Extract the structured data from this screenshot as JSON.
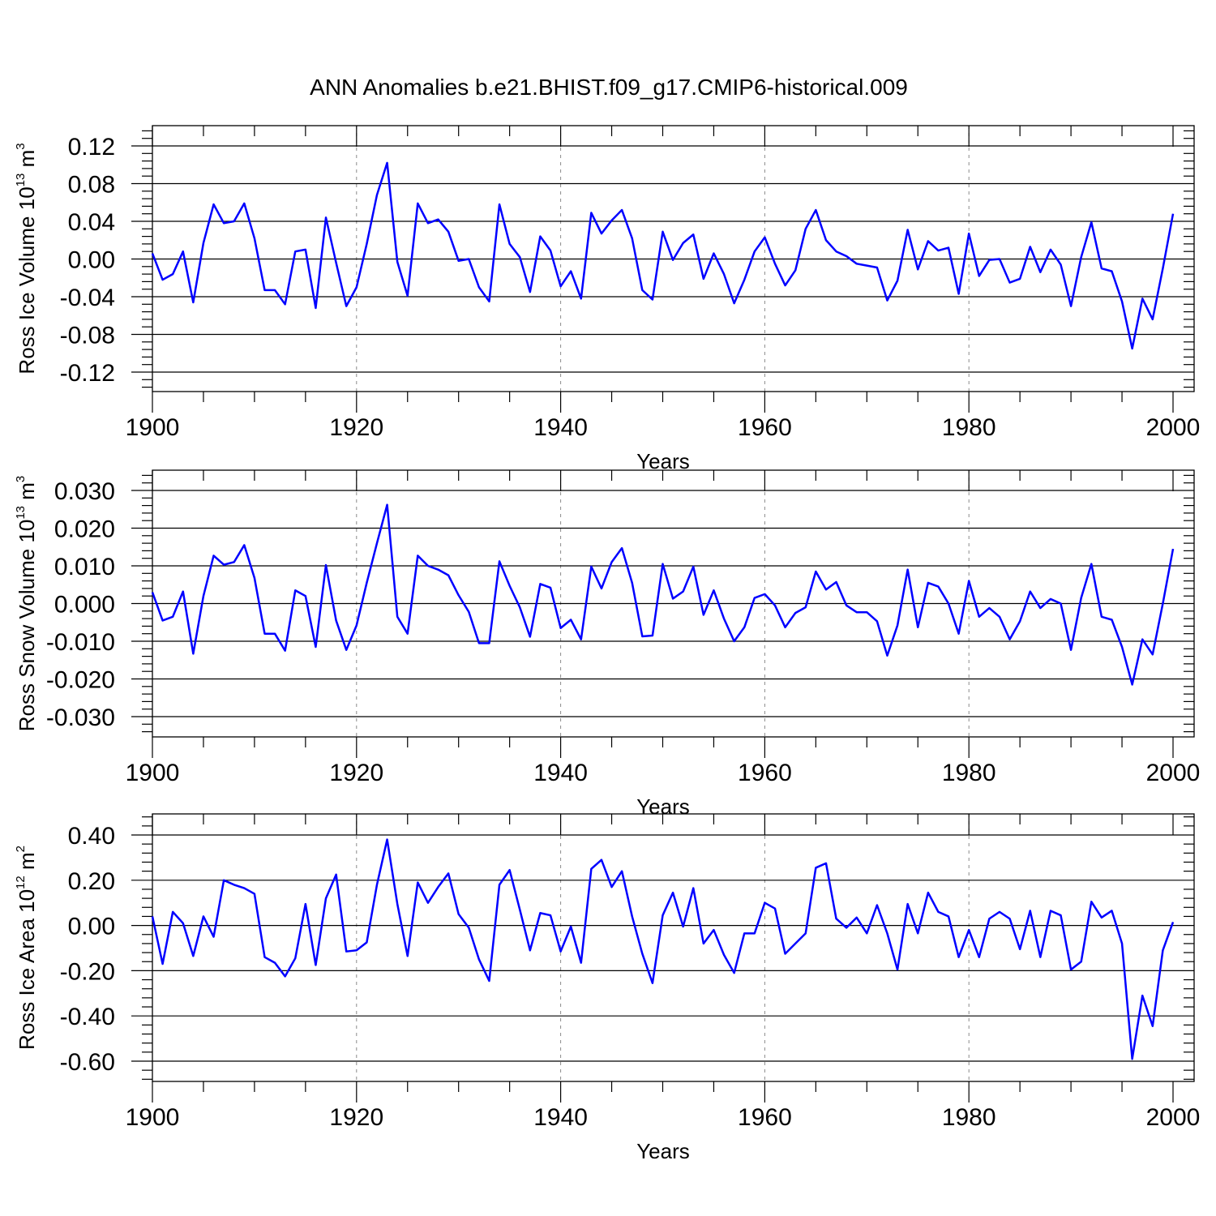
{
  "title": "ANN Anomalies b.e21.BHIST.f09_g17.CMIP6-historical.009",
  "line_color": "#0000ff",
  "chart_data": [
    {
      "type": "line",
      "xlabel": "Years",
      "ylabel": {
        "text": "Ross Ice Volume 10",
        "sup": "13",
        "unit": " m",
        "unit_sup": "3"
      },
      "xlim": [
        1900,
        2000
      ],
      "ylim": [
        -0.12,
        0.12
      ],
      "xticks": [
        1900,
        1920,
        1940,
        1960,
        1980,
        2000
      ],
      "xtick_labels": [
        "1900",
        "1920",
        "1940",
        "1960",
        "1980",
        "2000"
      ],
      "yticks": [
        -0.12,
        -0.08,
        -0.04,
        0.0,
        0.04,
        0.08,
        0.12
      ],
      "ytick_labels": [
        "-0.12",
        "-0.08",
        "-0.04",
        "0.00",
        "0.04",
        "0.08",
        "0.12"
      ],
      "grid": "x-dashed",
      "x_start": 1900,
      "values": [
        0.006,
        -0.022,
        -0.016,
        0.008,
        -0.046,
        0.017,
        0.058,
        0.038,
        0.04,
        0.059,
        0.022,
        -0.033,
        -0.033,
        -0.048,
        0.008,
        0.01,
        -0.052,
        0.044,
        -0.004,
        -0.05,
        -0.03,
        0.016,
        0.068,
        0.102,
        -0.003,
        -0.039,
        0.059,
        0.038,
        0.042,
        0.029,
        -0.002,
        0.0,
        -0.03,
        -0.045,
        0.058,
        0.016,
        0.002,
        -0.035,
        0.024,
        0.009,
        -0.029,
        -0.013,
        -0.042,
        0.049,
        0.027,
        0.041,
        0.052,
        0.022,
        -0.033,
        -0.043,
        0.029,
        -0.001,
        0.017,
        0.026,
        -0.021,
        0.006,
        -0.016,
        -0.047,
        -0.022,
        0.008,
        0.023,
        -0.005,
        -0.028,
        -0.012,
        0.032,
        0.052,
        0.02,
        0.008,
        0.003,
        -0.005,
        -0.007,
        -0.009,
        -0.044,
        -0.023,
        0.031,
        -0.011,
        0.019,
        0.009,
        0.012,
        -0.037,
        0.027,
        -0.018,
        -0.001,
        0.0,
        -0.025,
        -0.021,
        0.013,
        -0.014,
        0.01,
        -0.006,
        -0.05,
        0.002,
        0.039,
        -0.01,
        -0.013,
        -0.045,
        -0.095,
        -0.042,
        -0.064,
        -0.01,
        0.048
      ]
    },
    {
      "type": "line",
      "xlabel": "Years",
      "ylabel": {
        "text": "Ross Snow Volume 10",
        "sup": "13",
        "unit": " m",
        "unit_sup": "3"
      },
      "xlim": [
        1900,
        2000
      ],
      "ylim": [
        -0.03,
        0.03
      ],
      "xticks": [
        1900,
        1920,
        1940,
        1960,
        1980,
        2000
      ],
      "xtick_labels": [
        "1900",
        "1920",
        "1940",
        "1960",
        "1980",
        "2000"
      ],
      "yticks": [
        -0.03,
        -0.02,
        -0.01,
        0.0,
        0.01,
        0.02,
        0.03
      ],
      "ytick_labels": [
        "-0.030",
        "-0.020",
        "-0.010",
        "0.000",
        "0.010",
        "0.020",
        "0.030"
      ],
      "grid": "x-dashed",
      "x_start": 1900,
      "values": [
        0.003,
        -0.0045,
        -0.0035,
        0.0032,
        -0.0133,
        0.002,
        0.0127,
        0.0103,
        0.011,
        0.0155,
        0.0068,
        -0.008,
        -0.008,
        -0.0125,
        0.0035,
        0.002,
        -0.0115,
        0.0102,
        -0.0045,
        -0.0123,
        -0.0058,
        0.0055,
        0.016,
        0.0262,
        -0.0035,
        -0.008,
        0.0127,
        0.01,
        0.009,
        0.0075,
        0.0022,
        -0.0022,
        -0.0105,
        -0.0105,
        0.0112,
        0.0047,
        -0.001,
        -0.0088,
        0.0052,
        0.0042,
        -0.0065,
        -0.0043,
        -0.0095,
        0.0098,
        0.004,
        0.011,
        0.0147,
        0.0055,
        -0.0087,
        -0.0085,
        0.0105,
        0.0013,
        0.0032,
        0.0098,
        -0.003,
        0.0035,
        -0.004,
        -0.01,
        -0.0063,
        0.0015,
        0.0025,
        -0.0005,
        -0.0063,
        -0.0025,
        -0.001,
        0.0085,
        0.0037,
        0.0057,
        -0.0005,
        -0.0023,
        -0.0023,
        -0.0047,
        -0.0138,
        -0.0058,
        0.009,
        -0.0063,
        0.0055,
        0.0045,
        0.0,
        -0.008,
        0.006,
        -0.0035,
        -0.0012,
        -0.0035,
        -0.0095,
        -0.0047,
        0.0032,
        -0.0012,
        0.0012,
        0.0,
        -0.0123,
        0.0015,
        0.0105,
        -0.0035,
        -0.0043,
        -0.0115,
        -0.0215,
        -0.0095,
        -0.0135,
        0.0,
        0.0145
      ]
    },
    {
      "type": "line",
      "xlabel": "Years",
      "ylabel": {
        "text": "Ross Ice Area 10",
        "sup": "12",
        "unit": " m",
        "unit_sup": "2"
      },
      "xlim": [
        1900,
        2000
      ],
      "ylim": [
        -0.6,
        0.4
      ],
      "xticks": [
        1900,
        1920,
        1940,
        1960,
        1980,
        2000
      ],
      "xtick_labels": [
        "1900",
        "1920",
        "1940",
        "1960",
        "1980",
        "2000"
      ],
      "yticks": [
        -0.6,
        -0.4,
        -0.2,
        0.0,
        0.2,
        0.4
      ],
      "ytick_labels": [
        "-0.60",
        "-0.40",
        "-0.20",
        "0.00",
        "0.20",
        "0.40"
      ],
      "grid": "x-dashed",
      "x_start": 1900,
      "values": [
        0.04,
        -0.17,
        0.06,
        0.01,
        -0.135,
        0.04,
        -0.05,
        0.2,
        0.18,
        0.165,
        0.14,
        -0.14,
        -0.165,
        -0.225,
        -0.145,
        0.095,
        -0.175,
        0.12,
        0.225,
        -0.115,
        -0.11,
        -0.075,
        0.18,
        0.38,
        0.095,
        -0.135,
        0.19,
        0.1,
        0.17,
        0.23,
        0.05,
        -0.01,
        -0.15,
        -0.245,
        0.18,
        0.245,
        0.07,
        -0.11,
        0.055,
        0.045,
        -0.115,
        -0.005,
        -0.165,
        0.25,
        0.29,
        0.17,
        0.24,
        0.04,
        -0.125,
        -0.255,
        0.045,
        0.145,
        -0.005,
        0.165,
        -0.08,
        -0.02,
        -0.13,
        -0.21,
        -0.035,
        -0.035,
        0.1,
        0.075,
        -0.125,
        -0.08,
        -0.035,
        0.255,
        0.275,
        0.03,
        -0.01,
        0.035,
        -0.035,
        0.09,
        -0.035,
        -0.195,
        0.095,
        -0.035,
        0.145,
        0.06,
        0.04,
        -0.14,
        -0.02,
        -0.14,
        0.03,
        0.06,
        0.03,
        -0.105,
        0.065,
        -0.14,
        0.065,
        0.045,
        -0.195,
        -0.16,
        0.105,
        0.035,
        0.065,
        -0.08,
        -0.59,
        -0.31,
        -0.445,
        -0.11,
        0.015
      ]
    }
  ]
}
